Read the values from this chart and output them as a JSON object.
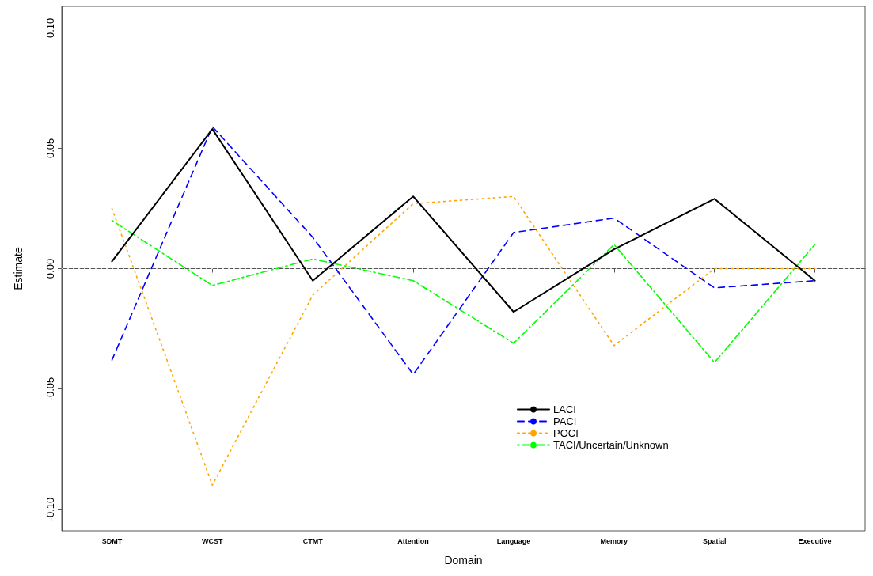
{
  "chart_data": {
    "type": "line",
    "xlabel": "Domain",
    "ylabel": "Estimate",
    "categories": [
      "SDMT",
      "WCST",
      "CTMT",
      "Attention",
      "Language",
      "Memory",
      "Spatial",
      "Executive"
    ],
    "series": [
      {
        "name": "LACI",
        "color": "#000000",
        "line_style": "solid",
        "values": [
          0.003,
          0.058,
          -0.005,
          0.03,
          -0.018,
          0.008,
          0.029,
          -0.005
        ]
      },
      {
        "name": "PACI",
        "color": "#0000ff",
        "line_style": "dashed",
        "values": [
          -0.038,
          0.059,
          0.013,
          -0.044,
          0.015,
          0.021,
          -0.008,
          -0.005
        ]
      },
      {
        "name": "POCI",
        "color": "#ffa500",
        "line_style": "dotted",
        "values": [
          0.025,
          -0.09,
          -0.011,
          0.027,
          0.03,
          -0.032,
          0.0,
          0.0
        ]
      },
      {
        "name": "TACI/Uncertain/Unknown",
        "color": "#00ff00",
        "line_style": "dashdot",
        "values": [
          0.02,
          -0.007,
          0.004,
          -0.005,
          -0.031,
          0.01,
          -0.039,
          0.01
        ]
      }
    ],
    "ylim": [
      -0.109,
      0.109
    ],
    "yticks": [
      {
        "value": -0.1,
        "label": "-0.10"
      },
      {
        "value": -0.05,
        "label": "-0.05"
      },
      {
        "value": 0,
        "label": "0.00"
      },
      {
        "value": 0.05,
        "label": "0.05"
      },
      {
        "value": 0.1,
        "label": "0.10"
      }
    ],
    "ref_lines": [
      {
        "axis": "y",
        "value": 0,
        "label": null,
        "color": "#dddddd",
        "line_style": "dotted"
      }
    ],
    "grid": false,
    "legend": "bottom right",
    "marker": "none"
  }
}
